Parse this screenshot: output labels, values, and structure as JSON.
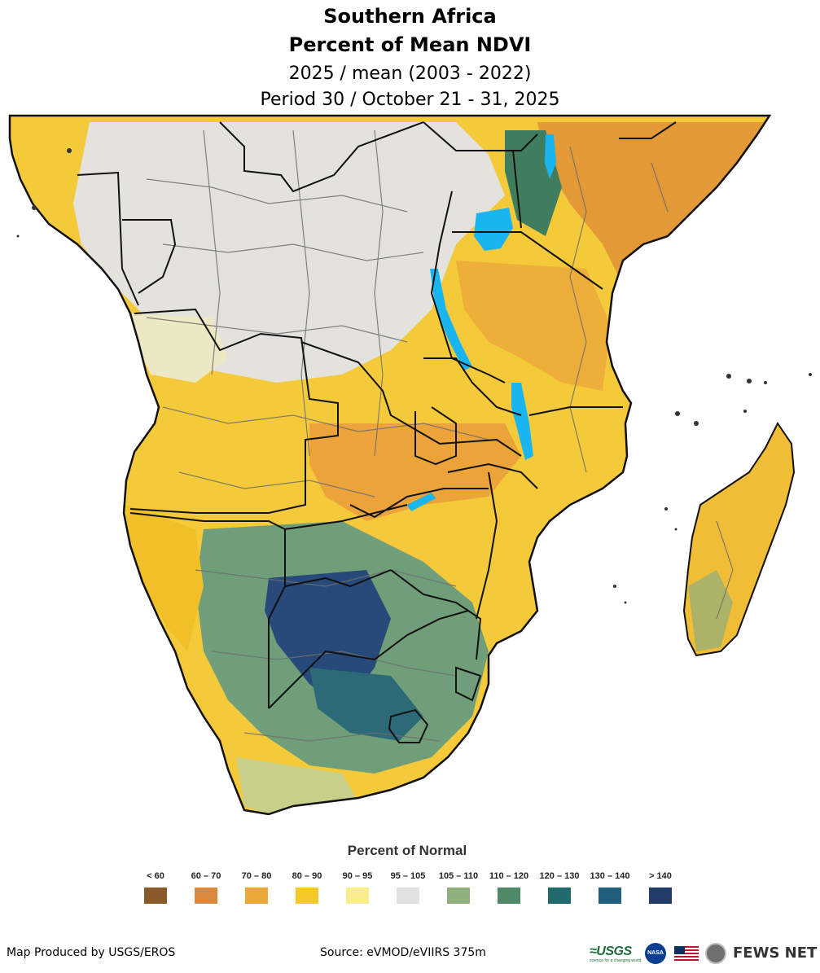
{
  "title": {
    "line1": "Southern Africa",
    "line2": "Percent of Mean NDVI",
    "line3": "2025 / mean (2003 - 2022)",
    "line4": "Period 30 / October 21 - 31, 2025"
  },
  "legend": {
    "title": "Percent of Normal",
    "items": [
      {
        "label": "< 60",
        "color": "#8b5a2b"
      },
      {
        "label": "60 – 70",
        "color": "#d98a3f"
      },
      {
        "label": "70 – 80",
        "color": "#eba93a"
      },
      {
        "label": "80 – 90",
        "color": "#f5c825"
      },
      {
        "label": "90 – 95",
        "color": "#f8ee8e"
      },
      {
        "label": "95 – 105",
        "color": "#e2e2e2"
      },
      {
        "label": "105 – 110",
        "color": "#8faf7e"
      },
      {
        "label": "110 – 120",
        "color": "#4e8a68"
      },
      {
        "label": "120 – 130",
        "color": "#226b6d"
      },
      {
        "label": "130 – 140",
        "color": "#215f7e"
      },
      {
        "label": "> 140",
        "color": "#233e6b"
      }
    ]
  },
  "footer": {
    "produced_by": "Map Produced by USGS/EROS",
    "source": "Source: eVMOD/eVIIRS 375m"
  },
  "logos": {
    "usgs": "≈USGS",
    "usgs_tagline": "science for a changing world",
    "nasa": "NASA",
    "fews": "FEWS NET"
  }
}
